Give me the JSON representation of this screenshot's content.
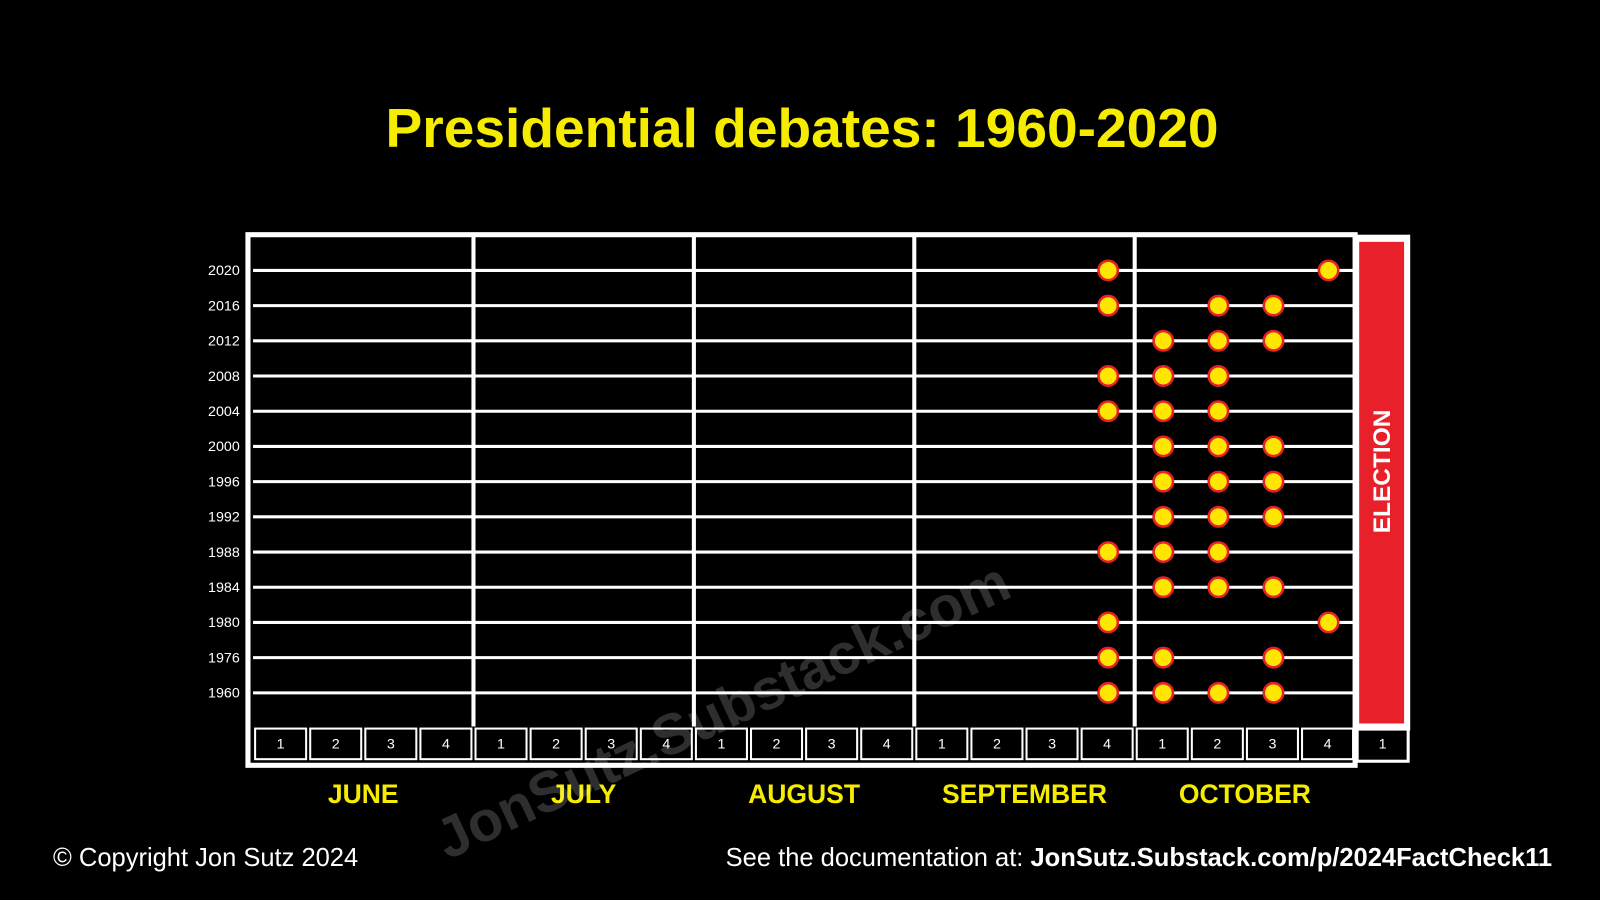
{
  "chart_data": {
    "type": "dot",
    "title": "Presidential debates: 1960-2020",
    "months": [
      "JUNE",
      "JULY",
      "AUGUST",
      "SEPTEMBER",
      "OCTOBER"
    ],
    "weeks": [
      1,
      2,
      3,
      4
    ],
    "election_label": "ELECTION",
    "election_week": 1,
    "color": "#ffe600",
    "edge_color": "#e8202a",
    "series": [
      {
        "name": "2020",
        "values": [
          0,
          0,
          0,
          0,
          0,
          0,
          0,
          0,
          0,
          0,
          0,
          0,
          0,
          0,
          0,
          1,
          0,
          0,
          0,
          1
        ]
      },
      {
        "name": "2016",
        "values": [
          0,
          0,
          0,
          0,
          0,
          0,
          0,
          0,
          0,
          0,
          0,
          0,
          0,
          0,
          0,
          1,
          0,
          1,
          1,
          0
        ]
      },
      {
        "name": "2012",
        "values": [
          0,
          0,
          0,
          0,
          0,
          0,
          0,
          0,
          0,
          0,
          0,
          0,
          0,
          0,
          0,
          0,
          1,
          1,
          1,
          0
        ]
      },
      {
        "name": "2008",
        "values": [
          0,
          0,
          0,
          0,
          0,
          0,
          0,
          0,
          0,
          0,
          0,
          0,
          0,
          0,
          0,
          1,
          1,
          1,
          0,
          0
        ]
      },
      {
        "name": "2004",
        "values": [
          0,
          0,
          0,
          0,
          0,
          0,
          0,
          0,
          0,
          0,
          0,
          0,
          0,
          0,
          0,
          1,
          1,
          1,
          0,
          0
        ]
      },
      {
        "name": "2000",
        "values": [
          0,
          0,
          0,
          0,
          0,
          0,
          0,
          0,
          0,
          0,
          0,
          0,
          0,
          0,
          0,
          0,
          1,
          1,
          1,
          0
        ]
      },
      {
        "name": "1996",
        "values": [
          0,
          0,
          0,
          0,
          0,
          0,
          0,
          0,
          0,
          0,
          0,
          0,
          0,
          0,
          0,
          0,
          1,
          1,
          1,
          0
        ]
      },
      {
        "name": "1992",
        "values": [
          0,
          0,
          0,
          0,
          0,
          0,
          0,
          0,
          0,
          0,
          0,
          0,
          0,
          0,
          0,
          0,
          1,
          1,
          1,
          0
        ]
      },
      {
        "name": "1988",
        "values": [
          0,
          0,
          0,
          0,
          0,
          0,
          0,
          0,
          0,
          0,
          0,
          0,
          0,
          0,
          0,
          1,
          1,
          1,
          0,
          0
        ]
      },
      {
        "name": "1984",
        "values": [
          0,
          0,
          0,
          0,
          0,
          0,
          0,
          0,
          0,
          0,
          0,
          0,
          0,
          0,
          0,
          0,
          1,
          1,
          1,
          0
        ]
      },
      {
        "name": "1980",
        "values": [
          0,
          0,
          0,
          0,
          0,
          0,
          0,
          0,
          0,
          0,
          0,
          0,
          0,
          0,
          0,
          1,
          0,
          0,
          0,
          1
        ]
      },
      {
        "name": "1976",
        "values": [
          0,
          0,
          0,
          0,
          0,
          0,
          0,
          0,
          0,
          0,
          0,
          0,
          0,
          0,
          0,
          1,
          1,
          0,
          1,
          0
        ]
      },
      {
        "name": "1960",
        "values": [
          0,
          0,
          0,
          0,
          0,
          0,
          0,
          0,
          0,
          0,
          0,
          0,
          0,
          0,
          0,
          1,
          1,
          1,
          1,
          0
        ]
      }
    ],
    "copyright": "© Copyright Jon Sutz 2024",
    "documentation_prefix": "See the documentation at:",
    "documentation_url": "JonSutz.Substack.com/p/2024FactCheck11",
    "watermark": "JonSutz.Substack.com"
  }
}
